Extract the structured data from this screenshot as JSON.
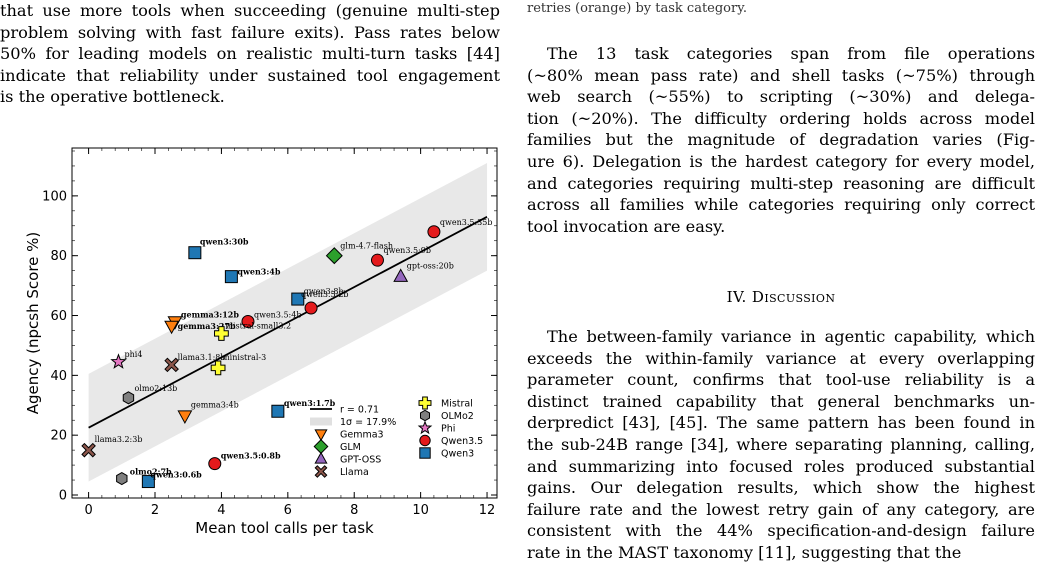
{
  "left_column": {
    "text_lines": [
      "that use more tools when succeeding (genuine multi-step",
      "problem solving with fast failure exits). Pass rates below",
      "50% for leading models on realistic multi-turn tasks [44]",
      "indicate that reliability under sustained tool engagement",
      "is the operative bottleneck."
    ]
  },
  "right_column": {
    "caption_tail": "retries (orange) by task category.",
    "para1_lines": [
      "The 13 task categories span from file operations",
      "(~80% mean pass rate) and shell tasks (~75%) through",
      "web search (~55%) to scripting (~30%) and delega-",
      "tion (~20%). The difficulty ordering holds across model",
      "families but the magnitude of degradation varies (Fig-",
      "ure 6). Delegation is the hardest category for every model,",
      "and categories requiring multi-step reasoning are difficult",
      "across all families while categories requiring only correct",
      "tool invocation are easy."
    ],
    "section_title": "IV. Discussion",
    "para2_lines": [
      "The between-family variance in agentic capability, which",
      "exceeds the within-family variance at every overlapping",
      "parameter count, confirms that tool-use reliability is a",
      "distinct trained capability that general benchmarks un-",
      "derpredict [43], [45]. The same pattern has been found in",
      "the sub-24B range [34], where separating planning, calling,",
      "and summarizing into focused roles produced substantial",
      "gains. Our delegation results, which show the highest",
      "failure rate and the lowest retry gain of any category, are",
      "consistent with the 44% specification-and-design failure",
      "rate in the MAST taxonomy [11], suggesting that the"
    ]
  },
  "chart_data": {
    "type": "scatter",
    "xlabel": "Mean tool calls per task",
    "ylabel": "Agency (npcsh Score %)",
    "xlim": [
      -0.5,
      12.3
    ],
    "ylim": [
      -1,
      116
    ],
    "xticks": [
      0,
      2,
      4,
      6,
      8,
      10,
      12
    ],
    "yticks": [
      0,
      20,
      40,
      60,
      80,
      100
    ],
    "fit": {
      "x0": 0,
      "y0": 22.5,
      "x1": 12,
      "y1": 93
    },
    "band": {
      "x0": 0,
      "lo0": 4.5,
      "hi0": 40.5,
      "x1": 12,
      "lo1": 75,
      "hi1": 111
    },
    "legend_right": [
      {
        "name": "r = 0.71",
        "kind": "line"
      },
      {
        "name": "1σ = 17.9%",
        "kind": "band"
      },
      {
        "name": "Gemma3",
        "kind": "family",
        "family": "Gemma3"
      },
      {
        "name": "GLM",
        "kind": "family",
        "family": "GLM"
      },
      {
        "name": "GPT-OSS",
        "kind": "family",
        "family": "GPT-OSS"
      },
      {
        "name": "Llama",
        "kind": "family",
        "family": "Llama"
      }
    ],
    "legend_far": [
      {
        "name": "Mistral",
        "family": "Mistral"
      },
      {
        "name": "OLMo2",
        "family": "OLMo2"
      },
      {
        "name": "Phi",
        "family": "Phi"
      },
      {
        "name": "Qwen3.5",
        "family": "Qwen3.5"
      },
      {
        "name": "Qwen3",
        "family": "Qwen3"
      }
    ],
    "families": {
      "Gemma3": {
        "marker": "tri-down",
        "color": "#ff7f0e"
      },
      "GLM": {
        "marker": "diamond",
        "color": "#2ca02c"
      },
      "GPT-OSS": {
        "marker": "tri-up",
        "color": "#9467bd"
      },
      "Llama": {
        "marker": "x",
        "color": "#8c564b"
      },
      "Mistral": {
        "marker": "plus",
        "color": "#ffff33"
      },
      "OLMo2": {
        "marker": "hexagon",
        "color": "#7f7f7f"
      },
      "Phi": {
        "marker": "star",
        "color": "#e377c2"
      },
      "Qwen3.5": {
        "marker": "circle",
        "color": "#e41a1c"
      },
      "Qwen3": {
        "marker": "square",
        "color": "#1f77b4"
      }
    },
    "points": [
      {
        "label": "qwen3:30b",
        "family": "Qwen3",
        "x": 3.2,
        "y": 81,
        "bold": true
      },
      {
        "label": "qwen3:4b",
        "family": "Qwen3",
        "x": 4.3,
        "y": 73,
        "bold": true
      },
      {
        "label": "qwen3:8b",
        "family": "Qwen3",
        "x": 6.3,
        "y": 65.5,
        "bold": false
      },
      {
        "label": "qwen3:1.7b",
        "family": "Qwen3",
        "x": 5.7,
        "y": 28,
        "bold": true
      },
      {
        "label": "qwen3:0.6b",
        "family": "Qwen3",
        "x": 1.8,
        "y": 4.5,
        "bold": true
      },
      {
        "label": "qwen3.5:35b",
        "family": "Qwen3.5",
        "x": 10.4,
        "y": 88,
        "bold": false
      },
      {
        "label": "qwen3.5:9b",
        "family": "Qwen3.5",
        "x": 8.7,
        "y": 78.5,
        "bold": false
      },
      {
        "label": "qwen3.5:2b",
        "family": "Qwen3.5",
        "x": 6.7,
        "y": 62.5,
        "bold": false
      },
      {
        "label": "qwen3.5:4b",
        "family": "Qwen3.5",
        "x": 4.8,
        "y": 58,
        "bold": false
      },
      {
        "label": "qwen3.5:0.8b",
        "family": "Qwen3.5",
        "x": 3.8,
        "y": 10.5,
        "bold": true
      },
      {
        "label": "glm-4.7-flash",
        "family": "GLM",
        "x": 7.4,
        "y": 80,
        "bold": false
      },
      {
        "label": "gpt-oss:20b",
        "family": "GPT-OSS",
        "x": 9.4,
        "y": 73,
        "bold": false
      },
      {
        "label": "gemma3:12b",
        "family": "Gemma3",
        "x": 2.6,
        "y": 58,
        "bold": true
      },
      {
        "label": "gemma3:27b",
        "family": "Gemma3",
        "x": 2.5,
        "y": 56.5,
        "bold": true
      },
      {
        "label": "gemma3:4b",
        "family": "Gemma3",
        "x": 2.9,
        "y": 26.5,
        "bold": false
      },
      {
        "label": "mistral-small3.2",
        "family": "Mistral",
        "x": 4.0,
        "y": 54,
        "bold": false
      },
      {
        "label": "ministral-3",
        "family": "Mistral",
        "x": 3.9,
        "y": 42.5,
        "bold": false
      },
      {
        "label": "llama3.1:8b",
        "family": "Llama",
        "x": 2.5,
        "y": 43.5,
        "bold": false
      },
      {
        "label": "llama3.2:3b",
        "family": "Llama",
        "x": 0.0,
        "y": 15,
        "bold": false
      },
      {
        "label": "phi4",
        "family": "Phi",
        "x": 0.9,
        "y": 44.5,
        "bold": false
      },
      {
        "label": "olmo2:13b",
        "family": "OLMo2",
        "x": 1.2,
        "y": 32.5,
        "bold": false
      },
      {
        "label": "olmo2:7b",
        "family": "OLMo2",
        "x": 1.0,
        "y": 5.5,
        "bold": true
      }
    ]
  }
}
